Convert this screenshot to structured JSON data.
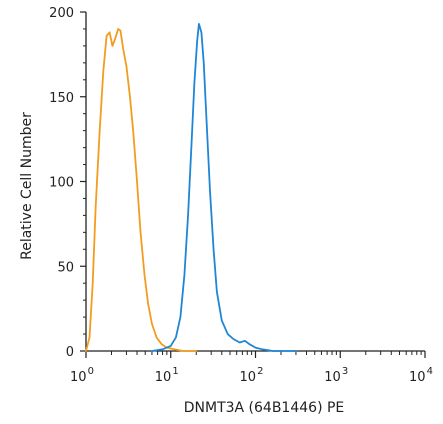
{
  "chart_data": {
    "type": "line",
    "xlabel": "DNMT3A (64B1446) PE",
    "ylabel": "Relative Cell Number",
    "x_scale": "log",
    "xlim": [
      1,
      10000
    ],
    "ylim": [
      0,
      200
    ],
    "x_ticks": [
      {
        "value": 1,
        "base": "10",
        "exp": "0"
      },
      {
        "value": 10,
        "base": "10",
        "exp": "1"
      },
      {
        "value": 100,
        "base": "10",
        "exp": "2"
      },
      {
        "value": 1000,
        "base": "10",
        "exp": "3"
      },
      {
        "value": 10000,
        "base": "10",
        "exp": "4"
      }
    ],
    "y_ticks": [
      {
        "value": 0,
        "label": "0"
      },
      {
        "value": 50,
        "label": "50"
      },
      {
        "value": 100,
        "label": "100"
      },
      {
        "value": 150,
        "label": "150"
      },
      {
        "value": 200,
        "label": "200"
      }
    ],
    "grid": false,
    "series": [
      {
        "color": "#f39c1f",
        "points": [
          [
            1.0,
            0
          ],
          [
            1.1,
            8
          ],
          [
            1.2,
            40
          ],
          [
            1.3,
            85
          ],
          [
            1.45,
            130
          ],
          [
            1.6,
            165
          ],
          [
            1.75,
            186
          ],
          [
            1.9,
            188
          ],
          [
            2.05,
            180
          ],
          [
            2.2,
            184
          ],
          [
            2.4,
            190
          ],
          [
            2.55,
            189
          ],
          [
            2.75,
            178
          ],
          [
            3.0,
            168
          ],
          [
            3.3,
            150
          ],
          [
            3.6,
            130
          ],
          [
            4.0,
            100
          ],
          [
            4.4,
            70
          ],
          [
            4.9,
            45
          ],
          [
            5.4,
            28
          ],
          [
            6.0,
            16
          ],
          [
            6.8,
            8
          ],
          [
            7.8,
            4
          ],
          [
            9.0,
            2
          ],
          [
            11,
            1
          ],
          [
            14,
            0
          ],
          [
            20,
            0
          ]
        ]
      },
      {
        "color": "#1f86d6",
        "points": [
          [
            6.0,
            0
          ],
          [
            8.0,
            1
          ],
          [
            10,
            3
          ],
          [
            11.5,
            8
          ],
          [
            13,
            20
          ],
          [
            14.5,
            45
          ],
          [
            16,
            80
          ],
          [
            17.5,
            120
          ],
          [
            19,
            158
          ],
          [
            20.5,
            183
          ],
          [
            21.5,
            193
          ],
          [
            23,
            188
          ],
          [
            24.5,
            170
          ],
          [
            26.5,
            135
          ],
          [
            29,
            95
          ],
          [
            32,
            60
          ],
          [
            35,
            35
          ],
          [
            40,
            18
          ],
          [
            47,
            10
          ],
          [
            55,
            7
          ],
          [
            65,
            5
          ],
          [
            75,
            6
          ],
          [
            85,
            4
          ],
          [
            100,
            2
          ],
          [
            120,
            1
          ],
          [
            160,
            0
          ],
          [
            300,
            0
          ]
        ]
      }
    ]
  }
}
